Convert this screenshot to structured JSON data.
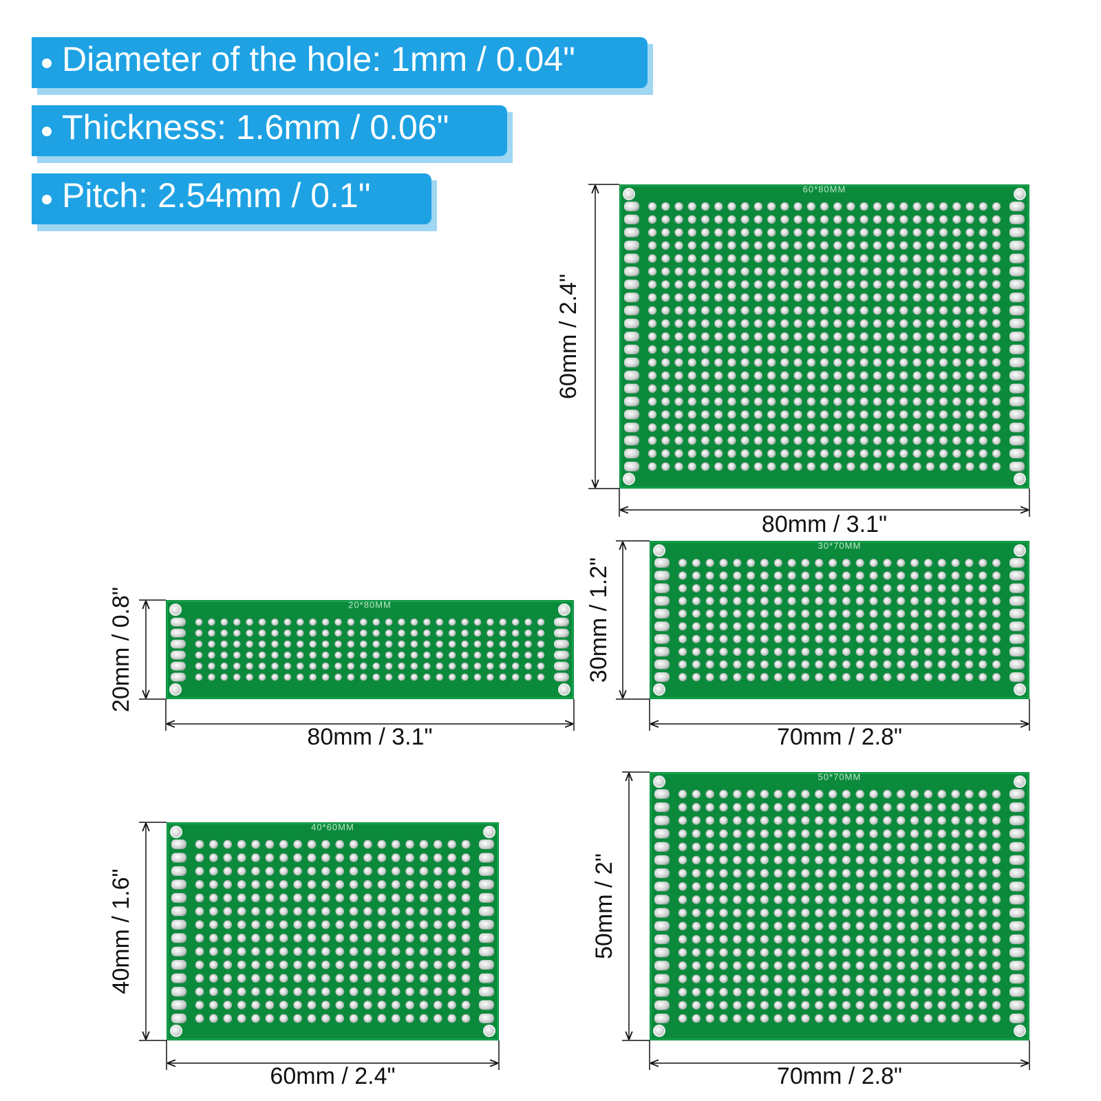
{
  "specs": [
    "Diameter of the hole: 1mm / 0.04\"",
    "Thickness: 1.6mm / 0.06\"",
    "Pitch: 2.54mm / 0.1\""
  ],
  "boards": [
    {
      "silk": "60*80MM",
      "height_label": "60mm / 2.4\"",
      "width_label": "80mm / 3.1\""
    },
    {
      "silk": "20*80MM",
      "height_label": "20mm / 0.8\"",
      "width_label": "80mm / 3.1\""
    },
    {
      "silk": "30*70MM",
      "height_label": "30mm / 1.2\"",
      "width_label": "70mm / 2.8\""
    },
    {
      "silk": "40*60MM",
      "height_label": "40mm / 1.6\"",
      "width_label": "60mm / 2.4\""
    },
    {
      "silk": "50*70MM",
      "height_label": "50mm / 2\"",
      "width_label": "70mm / 2.8\""
    }
  ]
}
